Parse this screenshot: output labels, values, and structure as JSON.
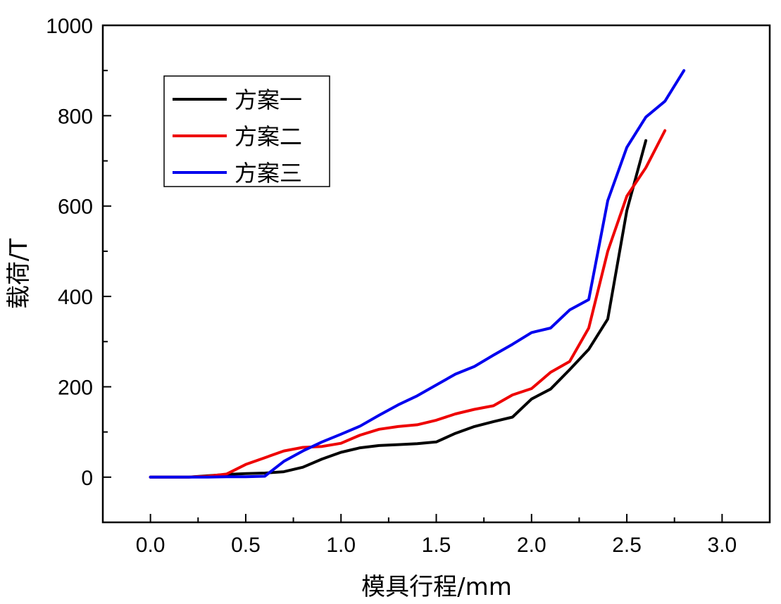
{
  "chart_data": {
    "type": "line",
    "title": "",
    "xlabel": "模具行程/mm",
    "ylabel": "载荷/T",
    "xlim": [
      -0.25,
      3.25
    ],
    "ylim": [
      -100,
      1000
    ],
    "xticks": [
      "0.0",
      "0.5",
      "1.0",
      "1.5",
      "2.0",
      "2.5",
      "3.0"
    ],
    "yticks": [
      "0",
      "200",
      "400",
      "600",
      "800",
      "1000"
    ],
    "grid": false,
    "legend_position": "top-left",
    "series": [
      {
        "name": "方案一",
        "color": "#000000",
        "x": [
          0,
          0.1,
          0.2,
          0.3,
          0.4,
          0.5,
          0.6,
          0.7,
          0.8,
          0.9,
          1.0,
          1.1,
          1.2,
          1.3,
          1.4,
          1.5,
          1.6,
          1.7,
          1.8,
          1.9,
          2.0,
          2.1,
          2.2,
          2.3,
          2.4,
          2.5,
          2.6
        ],
        "y": [
          0,
          0,
          0,
          3,
          6,
          8,
          9,
          12,
          22,
          40,
          55,
          65,
          70,
          72,
          74,
          78,
          97,
          112,
          123,
          133,
          173,
          195,
          238,
          283,
          350,
          590,
          745
        ]
      },
      {
        "name": "方案二",
        "color": "#ee0000",
        "x": [
          0,
          0.1,
          0.2,
          0.3,
          0.4,
          0.5,
          0.6,
          0.7,
          0.8,
          0.9,
          1.0,
          1.1,
          1.2,
          1.3,
          1.4,
          1.5,
          1.6,
          1.7,
          1.8,
          1.9,
          2.0,
          2.1,
          2.2,
          2.3,
          2.4,
          2.5,
          2.6,
          2.7
        ],
        "y": [
          0,
          0,
          0,
          2,
          7,
          28,
          43,
          58,
          66,
          68,
          75,
          93,
          106,
          112,
          116,
          126,
          140,
          150,
          158,
          182,
          196,
          232,
          256,
          330,
          500,
          622,
          685,
          767
        ]
      },
      {
        "name": "方案三",
        "color": "#0000ee",
        "x": [
          0,
          0.1,
          0.2,
          0.3,
          0.4,
          0.5,
          0.6,
          0.7,
          0.8,
          0.9,
          1.0,
          1.1,
          1.2,
          1.3,
          1.4,
          1.5,
          1.6,
          1.7,
          1.8,
          1.9,
          2.0,
          2.1,
          2.2,
          2.3,
          2.4,
          2.5,
          2.6,
          2.7,
          2.8
        ],
        "y": [
          0,
          0,
          0,
          0,
          1,
          1,
          2,
          35,
          58,
          78,
          95,
          113,
          137,
          160,
          180,
          204,
          228,
          245,
          270,
          294,
          320,
          330,
          370,
          393,
          612,
          730,
          797,
          832,
          900
        ]
      }
    ]
  }
}
